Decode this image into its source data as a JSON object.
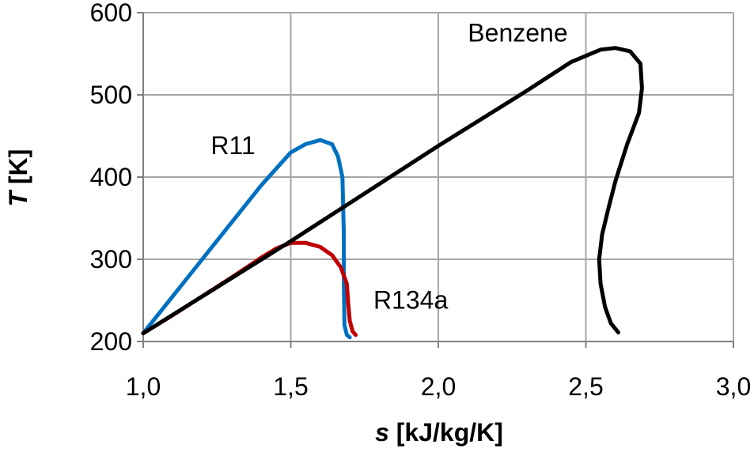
{
  "chart_data": {
    "type": "line",
    "title": "",
    "xlabel_italic": "s",
    "xlabel_unit": " [kJ/kg/K]",
    "ylabel_italic": "T",
    "ylabel_unit": " [K]",
    "xlim": [
      1.0,
      3.0
    ],
    "ylim": [
      200,
      600
    ],
    "x_ticks": [
      1.0,
      1.5,
      2.0,
      2.5,
      3.0
    ],
    "x_tick_labels": [
      "1,0",
      "1,5",
      "2,0",
      "2,5",
      "3,0"
    ],
    "y_ticks": [
      200,
      300,
      400,
      500,
      600
    ],
    "y_tick_labels": [
      "200",
      "300",
      "400",
      "500",
      "600"
    ],
    "grid": true,
    "legend": "none",
    "series": [
      {
        "name": "R11",
        "color": "#0070c0",
        "points": [
          [
            1.0,
            210
          ],
          [
            1.1,
            255
          ],
          [
            1.2,
            300
          ],
          [
            1.3,
            345
          ],
          [
            1.4,
            390
          ],
          [
            1.5,
            430
          ],
          [
            1.55,
            440
          ],
          [
            1.6,
            445
          ],
          [
            1.64,
            440
          ],
          [
            1.66,
            425
          ],
          [
            1.675,
            400
          ],
          [
            1.68,
            330
          ],
          [
            1.68,
            270
          ],
          [
            1.682,
            220
          ],
          [
            1.69,
            208
          ],
          [
            1.7,
            205
          ]
        ]
      },
      {
        "name": "R134a",
        "color": "#c00000",
        "points": [
          [
            1.0,
            210
          ],
          [
            1.1,
            232
          ],
          [
            1.2,
            255
          ],
          [
            1.3,
            278
          ],
          [
            1.4,
            302
          ],
          [
            1.45,
            313
          ],
          [
            1.5,
            320
          ],
          [
            1.55,
            320
          ],
          [
            1.6,
            315
          ],
          [
            1.64,
            305
          ],
          [
            1.67,
            290
          ],
          [
            1.69,
            270
          ],
          [
            1.695,
            245
          ],
          [
            1.7,
            225
          ],
          [
            1.71,
            212
          ],
          [
            1.72,
            208
          ]
        ]
      },
      {
        "name": "Benzene",
        "color": "#000000",
        "points": [
          [
            1.0,
            210
          ],
          [
            1.5,
            322
          ],
          [
            2.0,
            438
          ],
          [
            2.3,
            505
          ],
          [
            2.45,
            540
          ],
          [
            2.55,
            555
          ],
          [
            2.6,
            557
          ],
          [
            2.65,
            553
          ],
          [
            2.685,
            538
          ],
          [
            2.69,
            508
          ],
          [
            2.68,
            478
          ],
          [
            2.64,
            440
          ],
          [
            2.6,
            395
          ],
          [
            2.575,
            360
          ],
          [
            2.555,
            330
          ],
          [
            2.545,
            300
          ],
          [
            2.55,
            270
          ],
          [
            2.565,
            242
          ],
          [
            2.585,
            222
          ],
          [
            2.61,
            211
          ]
        ]
      }
    ],
    "annotations": [
      {
        "text": "R11",
        "x": 1.38,
        "y": 428,
        "anchor": "end"
      },
      {
        "text": "R134a",
        "x": 1.78,
        "y": 240,
        "anchor": "start"
      },
      {
        "text": "Benzene",
        "x": 2.1,
        "y": 565,
        "anchor": "start"
      }
    ]
  }
}
